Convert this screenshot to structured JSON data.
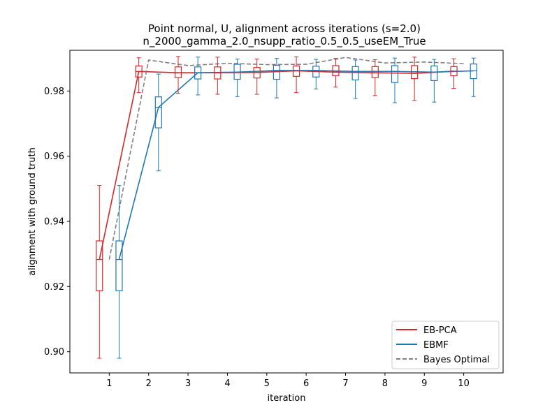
{
  "chart_data": {
    "type": "line",
    "title": "Point normal, U, alignment across iterations (s=2.0)",
    "subtitle": "n_2000_gamma_2.0_nsupp_ratio_0.5_0.5_useEM_True",
    "xlabel": "iteration",
    "ylabel": "alignment with ground truth",
    "x": [
      1,
      2,
      3,
      4,
      5,
      6,
      7,
      8,
      9,
      10
    ],
    "xlim": [
      0.0,
      11.0
    ],
    "ylim": [
      0.8935,
      0.9925
    ],
    "yticks": [
      0.9,
      0.92,
      0.94,
      0.96,
      0.98
    ],
    "ytick_labels": [
      "0.90",
      "0.92",
      "0.94",
      "0.96",
      "0.98"
    ],
    "xtick_labels": [
      "1",
      "2",
      "3",
      "4",
      "5",
      "6",
      "7",
      "8",
      "9",
      "10"
    ],
    "legend_position": "lower-right",
    "series": [
      {
        "name": "EB-PCA",
        "color": "#d62728",
        "style": "solid",
        "offset": -0.25,
        "values": [
          0.9283,
          0.986,
          0.9856,
          0.9856,
          0.9857,
          0.9862,
          0.9858,
          0.9856,
          0.9854,
          0.9861
        ],
        "boxes": [
          {
            "wlo": 0.898,
            "q1": 0.9187,
            "med": 0.9283,
            "q3": 0.934,
            "whi": 0.951
          },
          {
            "wlo": 0.9795,
            "q1": 0.9843,
            "med": 0.986,
            "q3": 0.9877,
            "whi": 0.9902
          },
          {
            "wlo": 0.9793,
            "q1": 0.9841,
            "med": 0.9856,
            "q3": 0.9874,
            "whi": 0.9906
          },
          {
            "wlo": 0.979,
            "q1": 0.9837,
            "med": 0.9856,
            "q3": 0.9874,
            "whi": 0.9904
          },
          {
            "wlo": 0.979,
            "q1": 0.984,
            "med": 0.9857,
            "q3": 0.9872,
            "whi": 0.9898
          },
          {
            "wlo": 0.9795,
            "q1": 0.9845,
            "med": 0.9862,
            "q3": 0.9877,
            "whi": 0.9905
          },
          {
            "wlo": 0.9812,
            "q1": 0.9847,
            "med": 0.9858,
            "q3": 0.9878,
            "whi": 0.99
          },
          {
            "wlo": 0.9786,
            "q1": 0.9841,
            "med": 0.9856,
            "q3": 0.9875,
            "whi": 0.9896
          },
          {
            "wlo": 0.9771,
            "q1": 0.9838,
            "med": 0.9854,
            "q3": 0.9878,
            "whi": 0.9904
          },
          {
            "wlo": 0.9808,
            "q1": 0.9847,
            "med": 0.9861,
            "q3": 0.9875,
            "whi": 0.9899
          }
        ]
      },
      {
        "name": "EBMF",
        "color": "#1f77b4",
        "style": "solid",
        "offset": 0.25,
        "values": [
          0.9283,
          0.975,
          0.9856,
          0.9858,
          0.9863,
          0.9863,
          0.986,
          0.986,
          0.9858,
          0.9862
        ],
        "boxes": [
          {
            "wlo": 0.898,
            "q1": 0.9187,
            "med": 0.9283,
            "q3": 0.934,
            "whi": 0.951
          },
          {
            "wlo": 0.9555,
            "q1": 0.9687,
            "med": 0.975,
            "q3": 0.9782,
            "whi": 0.9852
          },
          {
            "wlo": 0.9788,
            "q1": 0.9837,
            "med": 0.9856,
            "q3": 0.9874,
            "whi": 0.9904
          },
          {
            "wlo": 0.9783,
            "q1": 0.9836,
            "med": 0.9858,
            "q3": 0.9882,
            "whi": 0.9898
          },
          {
            "wlo": 0.9779,
            "q1": 0.9836,
            "med": 0.9863,
            "q3": 0.9879,
            "whi": 0.99
          },
          {
            "wlo": 0.9806,
            "q1": 0.9843,
            "med": 0.9863,
            "q3": 0.9876,
            "whi": 0.9897
          },
          {
            "wlo": 0.9777,
            "q1": 0.9834,
            "med": 0.986,
            "q3": 0.9875,
            "whi": 0.9895
          },
          {
            "wlo": 0.9764,
            "q1": 0.9826,
            "med": 0.986,
            "q3": 0.9878,
            "whi": 0.9901
          },
          {
            "wlo": 0.9766,
            "q1": 0.9832,
            "med": 0.9858,
            "q3": 0.9877,
            "whi": 0.9897
          },
          {
            "wlo": 0.9783,
            "q1": 0.9838,
            "med": 0.9862,
            "q3": 0.9883,
            "whi": 0.9901
          }
        ]
      },
      {
        "name": "Bayes Optimal",
        "color": "#808080",
        "style": "dashed",
        "offset": 0,
        "values": [
          0.9283,
          0.9895,
          0.9878,
          0.9885,
          0.9881,
          0.9882,
          0.9903,
          0.9886,
          0.9889,
          0.9884
        ]
      }
    ]
  }
}
